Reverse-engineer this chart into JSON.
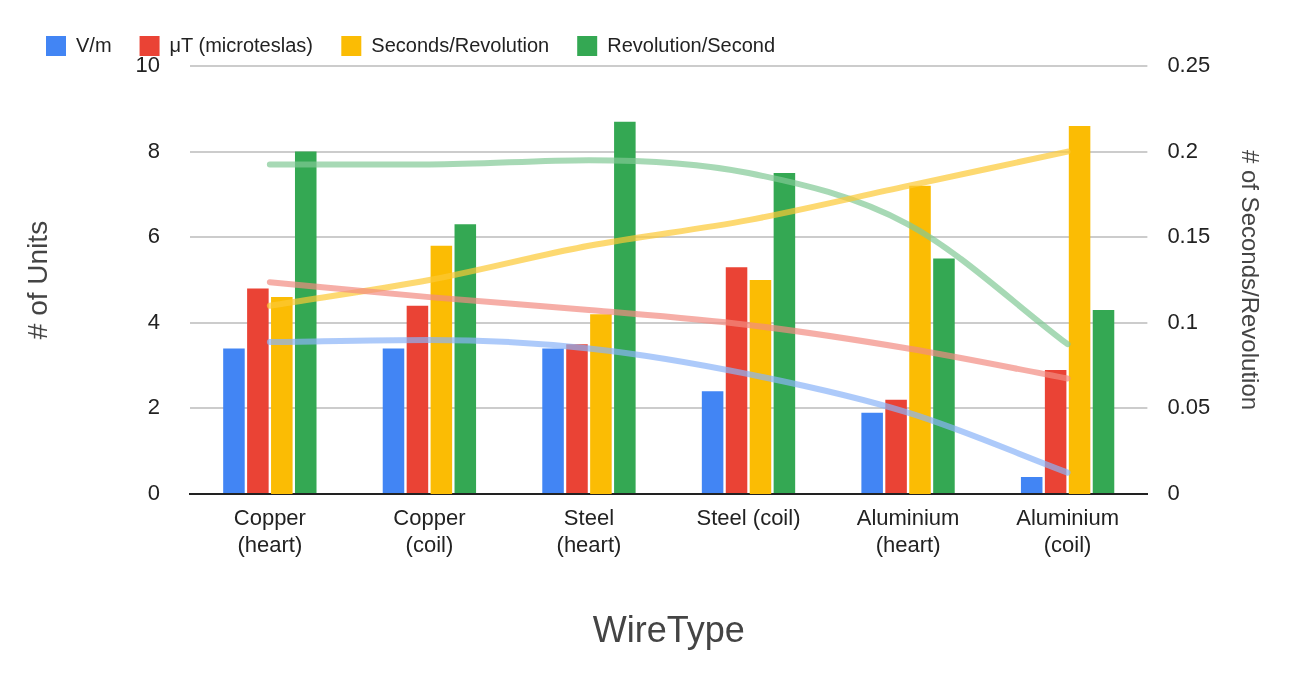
{
  "chart_data": {
    "type": "bar",
    "xlabel": "WireType",
    "ylabel": "# of Units",
    "y2label": "# of Seconds/Revolution",
    "categories": [
      "Copper (heart)",
      "Copper (coil)",
      "Steel (heart)",
      "Steel (coil)",
      "Aluminium (heart)",
      "Aluminium (coil)"
    ],
    "series": [
      {
        "name": "V/m",
        "color": "#4285f4",
        "values": [
          3.4,
          3.4,
          3.4,
          2.4,
          1.9,
          0.4
        ]
      },
      {
        "name": "μT (microteslas)",
        "color": "#ea4335",
        "values": [
          4.8,
          4.4,
          3.5,
          5.3,
          2.2,
          2.9
        ]
      },
      {
        "name": "Seconds/Revolution",
        "color": "#fbbc04",
        "axis": "y2",
        "values": [
          0.115,
          0.145,
          0.105,
          0.125,
          0.18,
          0.215
        ]
      },
      {
        "name": "Revolution/Second",
        "color": "#34a853",
        "values": [
          8.0,
          6.3,
          8.7,
          7.5,
          5.5,
          4.3
        ]
      },
      {
        "type": "line",
        "color": "#8ab4f8",
        "values": [
          3.55,
          3.6,
          3.4,
          2.8,
          1.9,
          0.5
        ]
      },
      {
        "type": "line",
        "color": "#f28b82",
        "values": [
          4.95,
          4.6,
          4.3,
          3.95,
          3.4,
          2.7
        ]
      },
      {
        "type": "line",
        "color": "#fcc934",
        "axis": "y2",
        "values": [
          0.11,
          0.125,
          0.145,
          0.16,
          0.18,
          0.2
        ]
      },
      {
        "type": "line",
        "color": "#81c995",
        "values": [
          7.7,
          7.7,
          7.8,
          7.5,
          6.3,
          3.5
        ]
      }
    ],
    "ylim": [
      0,
      10
    ],
    "yticks": [
      0,
      2,
      4,
      6,
      8,
      10
    ],
    "y2lim": [
      0,
      0.25
    ],
    "y2ticks": [
      0,
      0.05,
      0.1,
      0.15,
      0.2,
      0.25
    ],
    "grid": "y",
    "legend": "top left"
  }
}
